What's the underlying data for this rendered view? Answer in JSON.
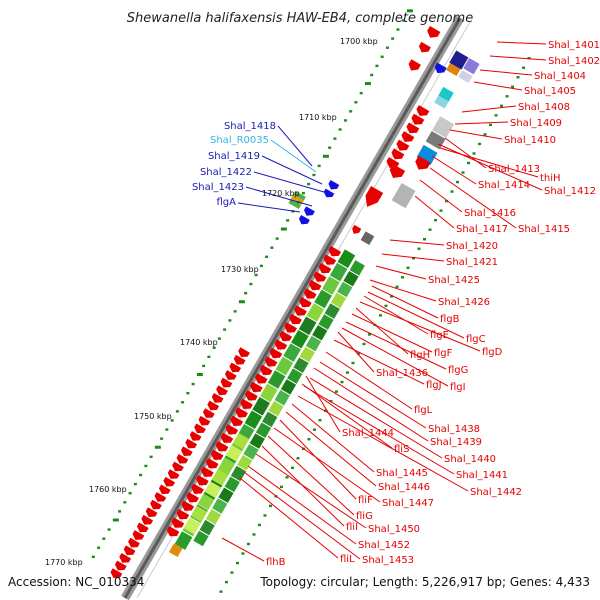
{
  "title": "Shewanella halifaxensis HAW-EB4, complete genome",
  "footer": {
    "accession": "Accession: NC_010334",
    "topology": "Topology: circular; Length: 5,226,917 bp; Genes: 4,433"
  },
  "kbp_labels": [
    "1700 kbp",
    "1710 kbp",
    "1720 kbp",
    "1730 kbp",
    "1740 kbp",
    "1750 kbp",
    "1760 kbp",
    "1770 kbp"
  ],
  "left_labels": [
    {
      "text": "Shal_1418",
      "color": "#1a1ab4"
    },
    {
      "text": "Shal_R0035",
      "color": "#3ab4e6"
    },
    {
      "text": "Shal_1419",
      "color": "#1a1ab4"
    },
    {
      "text": "Shal_1422",
      "color": "#1a1ab4"
    },
    {
      "text": "Shal_1423",
      "color": "#1a1ab4"
    },
    {
      "text": "flgA",
      "color": "#1a1ab4"
    }
  ],
  "right_labels": [
    "Shal_1401",
    "Shal_1402",
    "Shal_1404",
    "Shal_1405",
    "Shal_1408",
    "Shal_1409",
    "Shal_1410",
    "Shal_1413",
    "thiH",
    "Shal_1414",
    "Shal_1412",
    "Shal_1416",
    "Shal_1417",
    "Shal_1415",
    "Shal_1420",
    "Shal_1421",
    "Shal_1425",
    "Shal_1426",
    "flgB",
    "flgC",
    "flgE",
    "flgD",
    "flgH",
    "flgF",
    "flgG",
    "Shal_1436",
    "flgI",
    "flgJ",
    "flgL",
    "Shal_1438",
    "Shal_1439",
    "Shal_1444",
    "fliS",
    "Shal_1440",
    "Shal_1441",
    "Shal_1442",
    "Shal_1445",
    "Shal_1446",
    "fliF",
    "Shal_1447",
    "fliG",
    "fliI",
    "Shal_1450",
    "Shal_1452",
    "fliL",
    "Shal_1453",
    "flhB"
  ],
  "colors": {
    "label_red": "#e60000",
    "label_blue": "#1a1ab4",
    "label_cyan": "#3ab4e6",
    "gene_red": "#e60000",
    "gene_blue": "#1010e0",
    "backbone": "#8c8c8c",
    "tick_green": "#1a8c1a"
  }
}
